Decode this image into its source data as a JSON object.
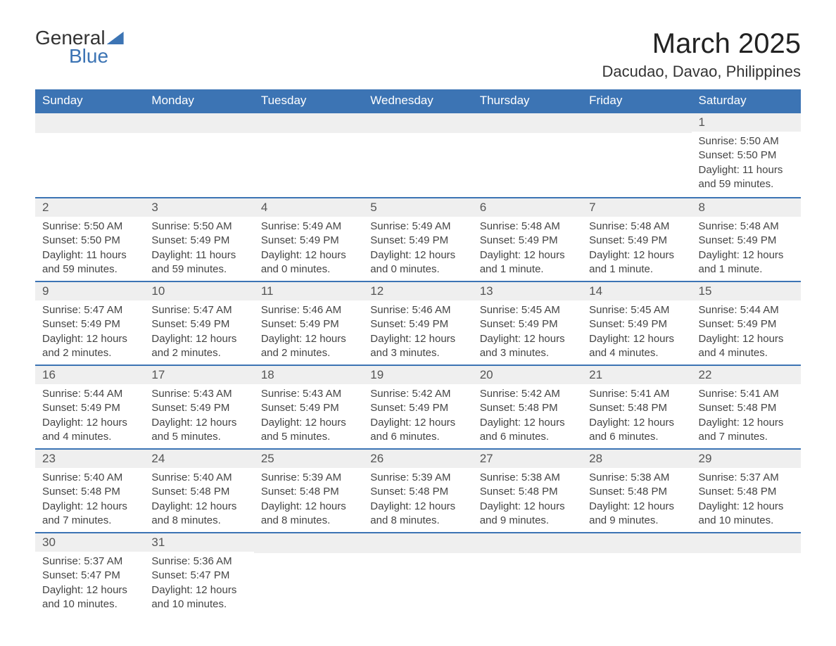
{
  "logo": {
    "line1": "General",
    "line2": "Blue"
  },
  "title": "March 2025",
  "location": "Dacudao, Davao, Philippines",
  "weekdays": [
    "Sunday",
    "Monday",
    "Tuesday",
    "Wednesday",
    "Thursday",
    "Friday",
    "Saturday"
  ],
  "colors": {
    "header_bg": "#3c74b4",
    "header_fg": "#ffffff",
    "daynum_bg": "#efefef",
    "row_border": "#3c74b4",
    "text": "#333333",
    "background": "#ffffff"
  },
  "fonts": {
    "title_size_pt": 30,
    "location_size_pt": 16,
    "header_size_pt": 13,
    "body_size_pt": 11
  },
  "grid": {
    "rows": 6,
    "cols": 7,
    "start_weekday_index": 6,
    "days_in_month": 31
  },
  "days": [
    {
      "n": 1,
      "sunrise": "5:50 AM",
      "sunset": "5:50 PM",
      "daylight": "11 hours and 59 minutes."
    },
    {
      "n": 2,
      "sunrise": "5:50 AM",
      "sunset": "5:50 PM",
      "daylight": "11 hours and 59 minutes."
    },
    {
      "n": 3,
      "sunrise": "5:50 AM",
      "sunset": "5:49 PM",
      "daylight": "11 hours and 59 minutes."
    },
    {
      "n": 4,
      "sunrise": "5:49 AM",
      "sunset": "5:49 PM",
      "daylight": "12 hours and 0 minutes."
    },
    {
      "n": 5,
      "sunrise": "5:49 AM",
      "sunset": "5:49 PM",
      "daylight": "12 hours and 0 minutes."
    },
    {
      "n": 6,
      "sunrise": "5:48 AM",
      "sunset": "5:49 PM",
      "daylight": "12 hours and 1 minute."
    },
    {
      "n": 7,
      "sunrise": "5:48 AM",
      "sunset": "5:49 PM",
      "daylight": "12 hours and 1 minute."
    },
    {
      "n": 8,
      "sunrise": "5:48 AM",
      "sunset": "5:49 PM",
      "daylight": "12 hours and 1 minute."
    },
    {
      "n": 9,
      "sunrise": "5:47 AM",
      "sunset": "5:49 PM",
      "daylight": "12 hours and 2 minutes."
    },
    {
      "n": 10,
      "sunrise": "5:47 AM",
      "sunset": "5:49 PM",
      "daylight": "12 hours and 2 minutes."
    },
    {
      "n": 11,
      "sunrise": "5:46 AM",
      "sunset": "5:49 PM",
      "daylight": "12 hours and 2 minutes."
    },
    {
      "n": 12,
      "sunrise": "5:46 AM",
      "sunset": "5:49 PM",
      "daylight": "12 hours and 3 minutes."
    },
    {
      "n": 13,
      "sunrise": "5:45 AM",
      "sunset": "5:49 PM",
      "daylight": "12 hours and 3 minutes."
    },
    {
      "n": 14,
      "sunrise": "5:45 AM",
      "sunset": "5:49 PM",
      "daylight": "12 hours and 4 minutes."
    },
    {
      "n": 15,
      "sunrise": "5:44 AM",
      "sunset": "5:49 PM",
      "daylight": "12 hours and 4 minutes."
    },
    {
      "n": 16,
      "sunrise": "5:44 AM",
      "sunset": "5:49 PM",
      "daylight": "12 hours and 4 minutes."
    },
    {
      "n": 17,
      "sunrise": "5:43 AM",
      "sunset": "5:49 PM",
      "daylight": "12 hours and 5 minutes."
    },
    {
      "n": 18,
      "sunrise": "5:43 AM",
      "sunset": "5:49 PM",
      "daylight": "12 hours and 5 minutes."
    },
    {
      "n": 19,
      "sunrise": "5:42 AM",
      "sunset": "5:49 PM",
      "daylight": "12 hours and 6 minutes."
    },
    {
      "n": 20,
      "sunrise": "5:42 AM",
      "sunset": "5:48 PM",
      "daylight": "12 hours and 6 minutes."
    },
    {
      "n": 21,
      "sunrise": "5:41 AM",
      "sunset": "5:48 PM",
      "daylight": "12 hours and 6 minutes."
    },
    {
      "n": 22,
      "sunrise": "5:41 AM",
      "sunset": "5:48 PM",
      "daylight": "12 hours and 7 minutes."
    },
    {
      "n": 23,
      "sunrise": "5:40 AM",
      "sunset": "5:48 PM",
      "daylight": "12 hours and 7 minutes."
    },
    {
      "n": 24,
      "sunrise": "5:40 AM",
      "sunset": "5:48 PM",
      "daylight": "12 hours and 8 minutes."
    },
    {
      "n": 25,
      "sunrise": "5:39 AM",
      "sunset": "5:48 PM",
      "daylight": "12 hours and 8 minutes."
    },
    {
      "n": 26,
      "sunrise": "5:39 AM",
      "sunset": "5:48 PM",
      "daylight": "12 hours and 8 minutes."
    },
    {
      "n": 27,
      "sunrise": "5:38 AM",
      "sunset": "5:48 PM",
      "daylight": "12 hours and 9 minutes."
    },
    {
      "n": 28,
      "sunrise": "5:38 AM",
      "sunset": "5:48 PM",
      "daylight": "12 hours and 9 minutes."
    },
    {
      "n": 29,
      "sunrise": "5:37 AM",
      "sunset": "5:48 PM",
      "daylight": "12 hours and 10 minutes."
    },
    {
      "n": 30,
      "sunrise": "5:37 AM",
      "sunset": "5:47 PM",
      "daylight": "12 hours and 10 minutes."
    },
    {
      "n": 31,
      "sunrise": "5:36 AM",
      "sunset": "5:47 PM",
      "daylight": "12 hours and 10 minutes."
    }
  ],
  "labels": {
    "sunrise": "Sunrise: ",
    "sunset": "Sunset: ",
    "daylight": "Daylight: "
  }
}
